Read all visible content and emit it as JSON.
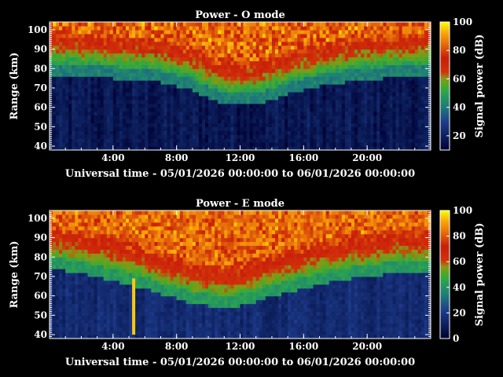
{
  "chart_data": [
    {
      "type": "heatmap",
      "title": "Power - O mode",
      "xlabel": "Universal time - 05/01/2026 00:00:00 to 06/01/2026 00:00:00",
      "ylabel": "Range (km)",
      "colorbar_label": "Signal power (dB)",
      "xlim_hours": [
        0,
        24
      ],
      "ylim": [
        38,
        104
      ],
      "x_ticks": [
        {
          "value": 4,
          "label": "4:00"
        },
        {
          "value": 8,
          "label": "8:00"
        },
        {
          "value": 12,
          "label": "12:00"
        },
        {
          "value": 16,
          "label": "16:00"
        },
        {
          "value": 20,
          "label": "20:00"
        }
      ],
      "y_ticks": [
        {
          "value": 40,
          "label": "40"
        },
        {
          "value": 50,
          "label": "50"
        },
        {
          "value": 60,
          "label": "60"
        },
        {
          "value": 70,
          "label": "70"
        },
        {
          "value": 80,
          "label": "80"
        },
        {
          "value": 90,
          "label": "90"
        },
        {
          "value": 100,
          "label": "100"
        }
      ],
      "colorbar_range": [
        10,
        100
      ],
      "colorbar_ticks": [
        {
          "value": 20,
          "label": "20"
        },
        {
          "value": 40,
          "label": "40"
        },
        {
          "value": 60,
          "label": "60"
        },
        {
          "value": 80,
          "label": "80"
        },
        {
          "value": 100,
          "label": "100"
        }
      ],
      "boundary_hours": [
        0,
        1,
        2,
        3,
        4,
        5,
        6,
        7,
        8,
        9,
        10,
        11,
        12,
        13,
        14,
        15,
        16,
        17,
        18,
        19,
        20,
        21,
        22,
        23,
        24
      ],
      "boundary_km": [
        79,
        79,
        78,
        78,
        77,
        77,
        76,
        75,
        73,
        71,
        67,
        64,
        63,
        64,
        66,
        69,
        71,
        73,
        74,
        76,
        77,
        77,
        78,
        78,
        79
      ],
      "background_power_db": 14,
      "peak_power_db": 90
    },
    {
      "type": "heatmap",
      "title": "Power - E mode",
      "xlabel": "Universal time - 05/01/2026 00:00:00 to 06/01/2026 00:00:00",
      "ylabel": "Range (km)",
      "colorbar_label": "Signal power (dB)",
      "xlim_hours": [
        0,
        24
      ],
      "ylim": [
        38,
        104
      ],
      "x_ticks": [
        {
          "value": 4,
          "label": "4:00"
        },
        {
          "value": 8,
          "label": "8:00"
        },
        {
          "value": 12,
          "label": "12:00"
        },
        {
          "value": 16,
          "label": "16:00"
        },
        {
          "value": 20,
          "label": "20:00"
        }
      ],
      "y_ticks": [
        {
          "value": 40,
          "label": "40"
        },
        {
          "value": 50,
          "label": "50"
        },
        {
          "value": 60,
          "label": "60"
        },
        {
          "value": 70,
          "label": "70"
        },
        {
          "value": 80,
          "label": "80"
        },
        {
          "value": 90,
          "label": "90"
        },
        {
          "value": 100,
          "label": "100"
        }
      ],
      "colorbar_range": [
        0,
        100
      ],
      "colorbar_ticks": [
        {
          "value": 0,
          "label": "0"
        },
        {
          "value": 20,
          "label": "20"
        },
        {
          "value": 40,
          "label": "40"
        },
        {
          "value": 60,
          "label": "60"
        },
        {
          "value": 80,
          "label": "80"
        },
        {
          "value": 100,
          "label": "100"
        }
      ],
      "boundary_hours": [
        0,
        1,
        2,
        3,
        4,
        5,
        6,
        7,
        8,
        9,
        10,
        11,
        12,
        13,
        14,
        15,
        16,
        17,
        18,
        19,
        20,
        21,
        22,
        23,
        24
      ],
      "boundary_km": [
        76,
        75,
        74,
        72,
        70,
        68,
        66,
        63,
        61,
        58,
        57,
        56,
        57,
        59,
        62,
        64,
        66,
        68,
        70,
        71,
        72,
        73,
        74,
        74,
        75
      ],
      "background_power_db": 12,
      "peak_power_db": 88,
      "features": [
        {
          "kind": "spike",
          "hour": 5.3,
          "km_range": [
            40,
            69
          ],
          "power_db": 95
        }
      ]
    }
  ]
}
